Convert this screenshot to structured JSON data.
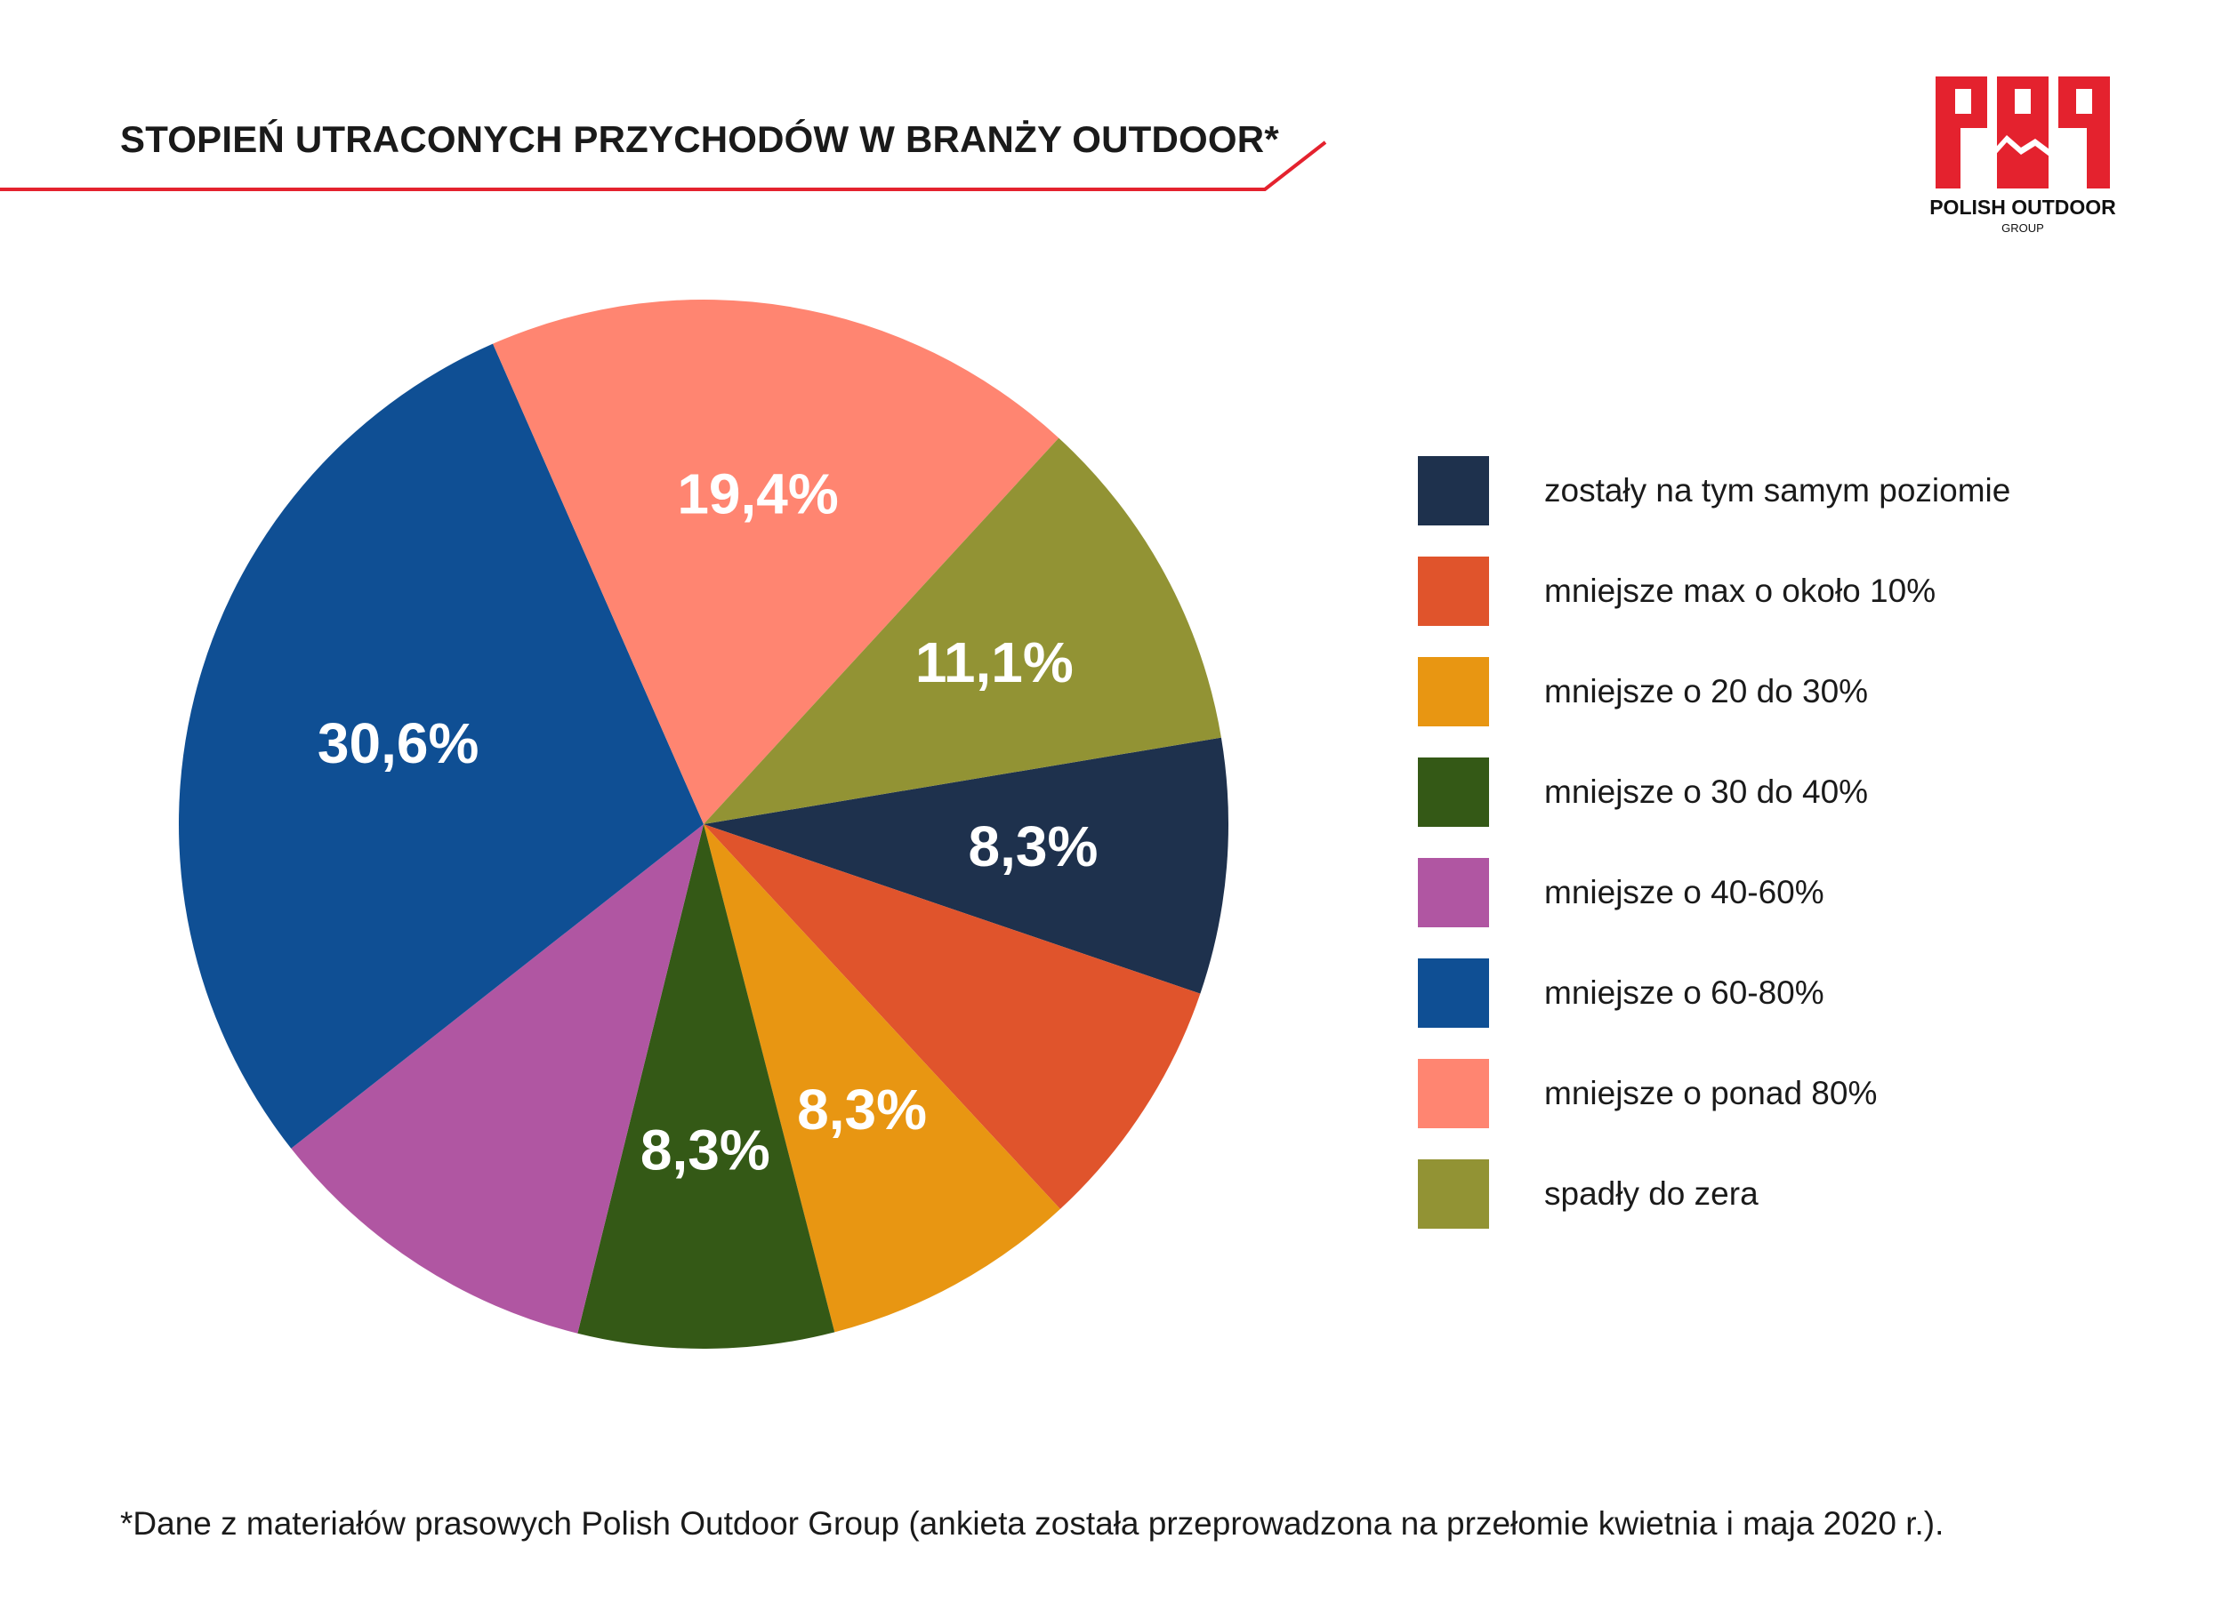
{
  "title": "STOPIEŃ UTRACONYCH PRZYCHODÓW W BRANŻY OUTDOOR*",
  "logo": {
    "name": "POLISH OUTDOOR",
    "sub": "GROUP",
    "color": "#e4222e"
  },
  "accent_color": "#e4222e",
  "chart_data": {
    "type": "pie",
    "title": "STOPIEŃ UTRACONYCH PRZYCHODÓW W BRANŻY OUTDOOR*",
    "unit": "%",
    "start_angle_deg": 0,
    "direction": "clockwise",
    "legend_position": "right",
    "slices": [
      {
        "label": "zostały na tym samym poziomie",
        "value": 8.3,
        "display": "8,3%",
        "color": "#1e314d"
      },
      {
        "label": "mniejsze max o około 10%",
        "value": 8.3,
        "display": "",
        "color": "#e0542c"
      },
      {
        "label": "mniejsze o 20 do 30%",
        "value": 8.3,
        "display": "8,3%",
        "color": "#e89612"
      },
      {
        "label": "mniejsze o 30 do 40%",
        "value": 8.3,
        "display": "8,3%",
        "color": "#345916"
      },
      {
        "label": "mniejsze o 40-60%",
        "value": 11.1,
        "display": "",
        "color": "#b056a2"
      },
      {
        "label": "mniejsze o 60-80%",
        "value": 30.6,
        "display": "30,6%",
        "color": "#0f4f94"
      },
      {
        "label": "mniejsze o ponad 80%",
        "value": 19.4,
        "display": "19,4%",
        "color": "#ff8571"
      },
      {
        "label": "spadły do zera",
        "value": 11.1,
        "display": "11,1%",
        "color": "#929334"
      }
    ]
  },
  "footnote": "*Dane z materiałów prasowych Polish Outdoor Group (ankieta została przeprowadzona na przełomie kwietnia i maja 2020 r.)."
}
